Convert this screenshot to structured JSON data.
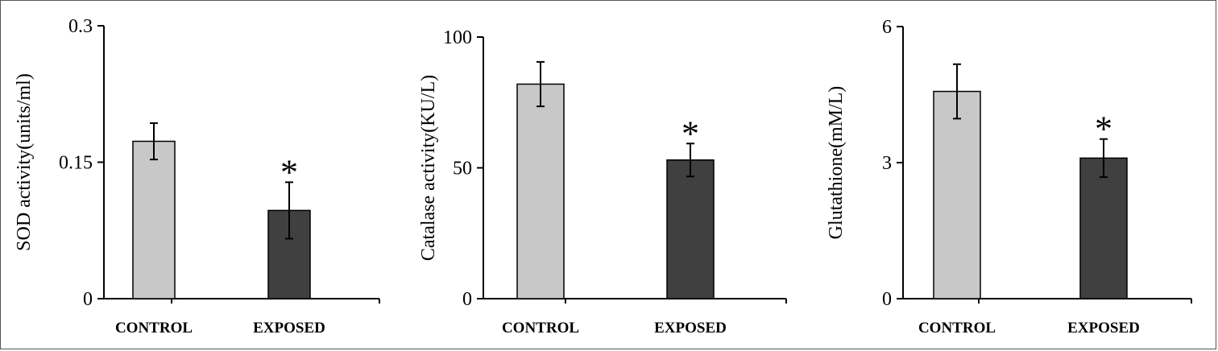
{
  "chart_data": [
    {
      "type": "bar",
      "ylabel": "SOD activity(units/ml)",
      "ylim": [
        0,
        0.3
      ],
      "yticks": [
        "0",
        "0.15",
        "0.3"
      ],
      "yticks_values": [
        0,
        0.15,
        0.3
      ],
      "categories": [
        "CONTROL",
        "EXPOSED"
      ],
      "values": [
        0.173,
        0.097
      ],
      "errors": [
        0.02,
        0.031
      ],
      "significance": [
        "",
        "*"
      ],
      "colors": [
        "#c8c8c8",
        "#404040"
      ]
    },
    {
      "type": "bar",
      "ylabel": "Catalase activity(KU/L)",
      "ylim": [
        0,
        100
      ],
      "yticks": [
        "0",
        "50",
        "100"
      ],
      "yticks_values": [
        0,
        50,
        100
      ],
      "categories": [
        "CONTROL",
        "EXPOSED"
      ],
      "values": [
        82,
        53
      ],
      "errors": [
        8.5,
        6.3
      ],
      "significance": [
        "",
        "*"
      ],
      "colors": [
        "#c8c8c8",
        "#404040"
      ]
    },
    {
      "type": "bar",
      "ylabel": "Glutathione(mM/L)",
      "ylim": [
        0,
        6
      ],
      "yticks": [
        "0",
        "3",
        "6"
      ],
      "yticks_values": [
        0,
        3,
        6
      ],
      "categories": [
        "CONTROL",
        "EXPOSED"
      ],
      "values": [
        4.57,
        3.1
      ],
      "errors": [
        0.6,
        0.42
      ],
      "significance": [
        "",
        "*"
      ],
      "colors": [
        "#c8c8c8",
        "#404040"
      ]
    }
  ]
}
